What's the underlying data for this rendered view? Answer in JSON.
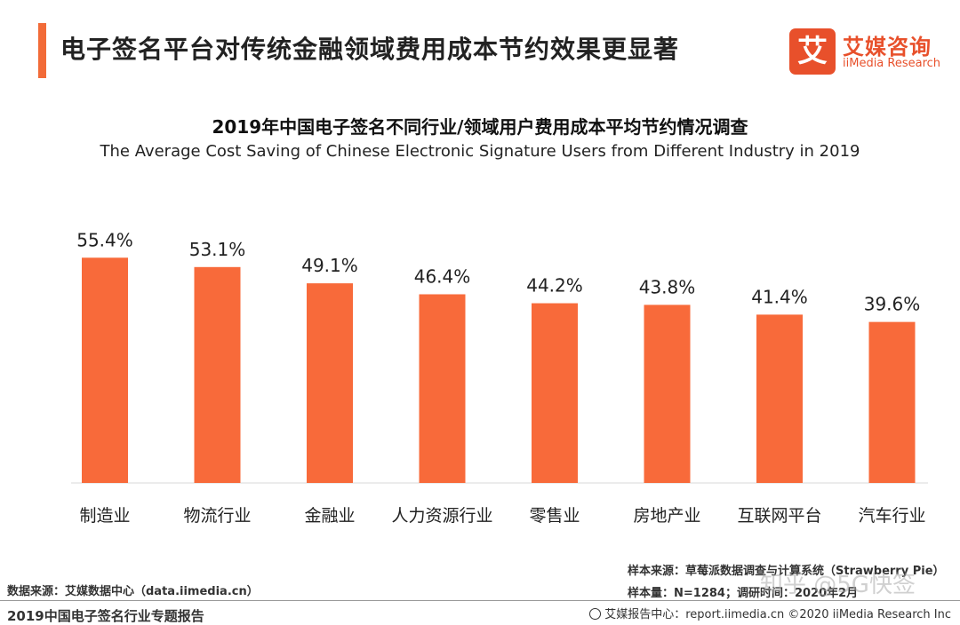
{
  "header": {
    "title": "电子签名平台对传统金融领域费用成本节约效果更显著",
    "accent_color": "#f26b38"
  },
  "logo": {
    "mark": "艾",
    "name_cn": "艾媒咨询",
    "name_en": "iiMedia Research",
    "color": "#e8502b"
  },
  "chart_data": {
    "type": "bar",
    "title": "2019年中国电子签名不同行业/领域用户费用成本平均节约情况调查",
    "subtitle": "The Average Cost Saving of Chinese Electronic Signature Users from Different Industry in 2019",
    "categories": [
      "制造业",
      "物流行业",
      "金融业",
      "人力资源行业",
      "零售业",
      "房地产业",
      "互联网平台",
      "汽车行业"
    ],
    "values": [
      55.4,
      53.1,
      49.1,
      46.4,
      44.2,
      43.8,
      41.4,
      39.6
    ],
    "data_labels": [
      "55.4%",
      "53.1%",
      "49.1%",
      "46.4%",
      "44.2%",
      "43.8%",
      "41.4%",
      "39.6%"
    ],
    "unit": "%",
    "ylim": [
      0,
      60
    ],
    "grid": false,
    "bar_color": "#f86a3a"
  },
  "notes": {
    "sample_source": "样本来源：草莓派数据调查与计算系统（Strawberry Pie）",
    "sample_size": "样本量：N=1284；调研时间：2020年2月",
    "data_source": "数据来源：艾媒数据中心（data.iimedia.cn）",
    "watermark": "知乎 @5G快签"
  },
  "footer": {
    "report_title": "2019中国电子签名行业专题报告",
    "credit": "艾媒报告中心：report.iimedia.cn   ©2020  iiMedia Research  Inc"
  }
}
